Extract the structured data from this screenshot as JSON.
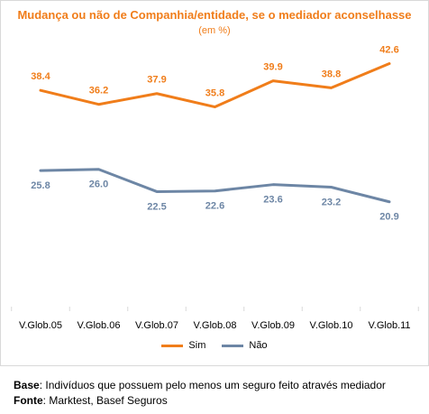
{
  "chart_data": {
    "type": "line",
    "title": "Mudança ou não de Companhia/entidade, se o mediador aconselhasse",
    "subtitle": "(em %)",
    "categories": [
      "V.Glob.05",
      "V.Glob.06",
      "V.Glob.07",
      "V.Glob.08",
      "V.Glob.09",
      "V.Glob.10",
      "V.Glob.11"
    ],
    "series": [
      {
        "name": "Sim",
        "values": [
          38.4,
          36.2,
          37.9,
          35.8,
          39.9,
          38.8,
          42.6
        ],
        "color": "#f07d1a",
        "labels": [
          "38.4",
          "36.2",
          "37.9",
          "35.8",
          "39.9",
          "38.8",
          "42.6"
        ]
      },
      {
        "name": "Não",
        "values": [
          25.8,
          26.0,
          22.5,
          22.6,
          23.6,
          23.2,
          20.9
        ],
        "color": "#6d86a5",
        "labels": [
          "25.8",
          "26.0",
          "22.5",
          "22.6",
          "23.6",
          "23.2",
          "20.9"
        ]
      }
    ],
    "grid": false,
    "legend_position": "bottom"
  },
  "footnotes": {
    "base_label": "Base",
    "base_text": ": Indivíduos que possuem pelo menos um seguro feito através mediador",
    "source_label": "Fonte",
    "source_text": ": Marktest, Basef Seguros"
  }
}
